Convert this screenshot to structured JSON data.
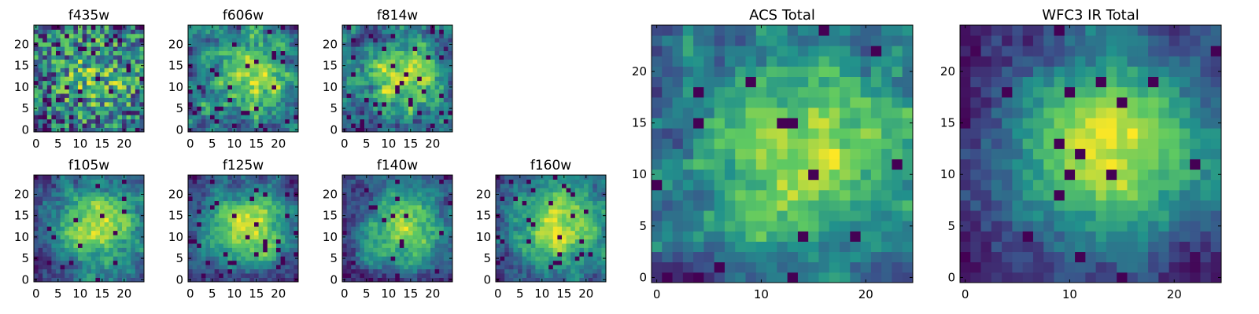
{
  "colormap": [
    "#440154",
    "#3b528b",
    "#21918c",
    "#5ec962",
    "#fde725"
  ],
  "chart_data": [
    {
      "type": "heatmap",
      "title": "f435w",
      "grid_size": 25,
      "seed": 11,
      "smooth": 0,
      "noise": 1.0,
      "dark_spots": 0.05,
      "base": 0.5,
      "xticks": [
        0,
        5,
        10,
        15,
        20
      ],
      "yticks": [
        0,
        5,
        10,
        15,
        20
      ]
    },
    {
      "type": "heatmap",
      "title": "f606w",
      "grid_size": 25,
      "seed": 23,
      "smooth": 0.5,
      "noise": 0.8,
      "dark_spots": 0.05,
      "base": 0.5,
      "xticks": [
        0,
        5,
        10,
        15,
        20
      ],
      "yticks": [
        0,
        5,
        10,
        15,
        20
      ]
    },
    {
      "type": "heatmap",
      "title": "f814w",
      "grid_size": 25,
      "seed": 37,
      "smooth": 1,
      "noise": 0.7,
      "dark_spots": 0.06,
      "base": 0.5,
      "xticks": [
        0,
        5,
        10,
        15,
        20
      ],
      "yticks": [
        0,
        5,
        10,
        15,
        20
      ]
    },
    {
      "type": "heatmap",
      "title": "f105w",
      "grid_size": 25,
      "seed": 41,
      "smooth": 2,
      "noise": 0.5,
      "dark_spots": 0.03,
      "base": 0.45,
      "xticks": [
        0,
        5,
        10,
        15,
        20
      ],
      "yticks": [
        0,
        5,
        10,
        15,
        20
      ]
    },
    {
      "type": "heatmap",
      "title": "f125w",
      "grid_size": 25,
      "seed": 53,
      "smooth": 2,
      "noise": 0.45,
      "dark_spots": 0.04,
      "base": 0.5,
      "xticks": [
        0,
        5,
        10,
        15,
        20
      ],
      "yticks": [
        0,
        5,
        10,
        15,
        20
      ]
    },
    {
      "type": "heatmap",
      "title": "f140w",
      "grid_size": 25,
      "seed": 67,
      "smooth": 2,
      "noise": 0.5,
      "dark_spots": 0.03,
      "base": 0.45,
      "xticks": [
        0,
        5,
        10,
        15,
        20
      ],
      "yticks": [
        0,
        5,
        10,
        15,
        20
      ]
    },
    {
      "type": "heatmap",
      "title": "f160w",
      "grid_size": 25,
      "seed": 79,
      "smooth": 2,
      "noise": 0.5,
      "dark_spots": 0.04,
      "base": 0.42,
      "xticks": [
        0,
        5,
        10,
        15,
        20
      ],
      "yticks": [
        0,
        5,
        10,
        15,
        20
      ]
    },
    {
      "type": "heatmap",
      "title": "ACS Total",
      "grid_size": 25,
      "seed": 97,
      "smooth": 1,
      "noise": 0.6,
      "dark_spots": 0.025,
      "base": 0.6,
      "xticks": [
        0,
        10,
        20
      ],
      "yticks": [
        0,
        5,
        10,
        15,
        20
      ]
    },
    {
      "type": "heatmap",
      "title": "WFC3 IR Total",
      "grid_size": 25,
      "seed": 113,
      "smooth": 3,
      "noise": 0.35,
      "dark_spots": 0.02,
      "base": 0.45,
      "xticks": [
        0,
        10,
        20
      ],
      "yticks": [
        0,
        5,
        10,
        15,
        20
      ]
    }
  ]
}
